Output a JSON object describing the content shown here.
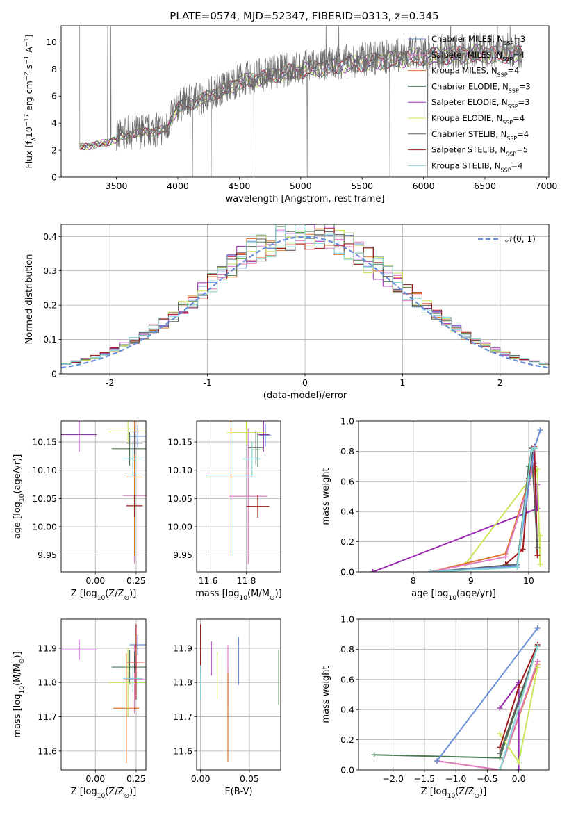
{
  "figure": {
    "title": "PLATE=0574, MJD=52347, FIBERID=0313, z=0.345"
  },
  "colors": {
    "Chabrier MILES": "#6a8ed8",
    "Salpeter MILES": "#e07fc6",
    "Kroupa MILES": "#e0762c",
    "Chabrier ELODIE": "#4b7a53",
    "Salpeter ELODIE": "#9a2ab0",
    "Kroupa ELODIE": "#c9e65a",
    "Chabrier STELIB": "#5e5e5e",
    "Salpeter STELIB": "#a01818",
    "Kroupa STELIB": "#86d7d7"
  },
  "chart_data": [
    {
      "id": "spectrum",
      "type": "line",
      "title": "PLATE=0574, MJD=52347, FIBERID=0313, z=0.345",
      "xlabel": "wavelength [Angstrom, rest frame]",
      "ylabel": "Flux [f",
      "ylabel_sub": "λ",
      "ylabel_rest": "10",
      "ylabel_sup1": "−17",
      "ylabel_rest2": " erg cm",
      "ylabel_sup2": "−2",
      "ylabel_rest3": " s",
      "ylabel_sup3": "−1",
      "ylabel_rest4": " A",
      "ylabel_sup4": "−1",
      "ylabel_end": "]",
      "xlim": [
        3050,
        7020
      ],
      "ylim": [
        0,
        11.2
      ],
      "xticks": [
        3500,
        4000,
        4500,
        5000,
        5500,
        6000,
        6500,
        7000
      ],
      "yticks": [
        0,
        2,
        4,
        6,
        8,
        10
      ],
      "grid": false,
      "legend_position": "top-right",
      "legend": [
        {
          "name": "Chabrier MILES",
          "nssp": "3"
        },
        {
          "name": "Salpeter MILES",
          "nssp": "4"
        },
        {
          "name": "Kroupa MILES",
          "nssp": "4"
        },
        {
          "name": "Chabrier ELODIE",
          "nssp": "3"
        },
        {
          "name": "Salpeter ELODIE",
          "nssp": "3"
        },
        {
          "name": "Kroupa ELODIE",
          "nssp": "4"
        },
        {
          "name": "Chabrier STELIB",
          "nssp": "4"
        },
        {
          "name": "Salpeter STELIB",
          "nssp": "5"
        },
        {
          "name": "Kroupa STELIB",
          "nssp": "4"
        }
      ],
      "continuum": {
        "x": [
          3200,
          3300,
          3400,
          3500,
          3600,
          3700,
          3800,
          3900,
          4000,
          4100,
          4200,
          4300,
          4400,
          4500,
          4600,
          4700,
          4800,
          4900,
          5000,
          5100,
          5200,
          5300,
          5400,
          5500,
          5600,
          5700,
          5800,
          5900,
          6000,
          6100,
          6200,
          6300,
          6400,
          6500,
          6600,
          6700,
          6800
        ],
        "y": [
          2.3,
          2.4,
          2.6,
          2.9,
          3.3,
          3.4,
          3.5,
          3.6,
          5.3,
          5.6,
          5.9,
          6.4,
          6.7,
          7.2,
          7.4,
          7.6,
          7.8,
          8.0,
          8.1,
          8.3,
          8.3,
          8.5,
          8.6,
          8.7,
          8.8,
          8.9,
          9.0,
          9.1,
          9.2,
          9.2,
          9.3,
          9.3,
          9.4,
          9.4,
          9.3,
          9.4,
          9.3
        ]
      },
      "data_range_angstrom": [
        3200,
        6800
      ],
      "noise_start_angstrom": 3500
    },
    {
      "id": "residuals",
      "type": "line",
      "xlabel": "(data-model)/error",
      "ylabel": "Normed distribution",
      "xlim": [
        -2.5,
        2.5
      ],
      "ylim": [
        0,
        0.435
      ],
      "xticks": [
        -2,
        -1,
        0,
        1,
        2
      ],
      "yticks": [
        0.0,
        0.1,
        0.2,
        0.3,
        0.4
      ],
      "grid": true,
      "legend_position": "top-right",
      "legend_label": "𝒩(0, 1)",
      "bin_width": 0.1,
      "reference_curve": {
        "type": "gaussian",
        "mean": 0,
        "sigma": 1
      },
      "series_order": [
        "Chabrier MILES",
        "Salpeter MILES",
        "Kroupa MILES",
        "Chabrier ELODIE",
        "Salpeter ELODIE",
        "Kroupa ELODIE",
        "Chabrier STELIB",
        "Salpeter STELIB",
        "Kroupa STELIB"
      ]
    },
    {
      "id": "z-age",
      "type": "scatter",
      "xlabel": "Z [log",
      "xlabel_sub": "10",
      "xlabel_rest": "(Z/Z",
      "xlabel_sub2": "⊙",
      "xlabel_end": ")]",
      "ylabel": "age  [log",
      "ylabel_sub": "10",
      "ylabel_rest": "(age/yr)]",
      "xlim": [
        -0.21,
        0.31
      ],
      "ylim": [
        9.92,
        10.187
      ],
      "xticks": [
        0.0,
        0.25
      ],
      "xtick_labels": [
        "0.00",
        "0.25"
      ],
      "yticks": [
        9.95,
        10.0,
        10.05,
        10.1,
        10.15
      ],
      "ytick_labels": [
        "9.95",
        "10.00",
        "10.05",
        "10.10",
        "10.15"
      ],
      "grid": true,
      "points": [
        {
          "series": "Chabrier MILES",
          "x": 0.26,
          "y": 10.16,
          "xerr": 0.05,
          "yerr": 0.02
        },
        {
          "series": "Salpeter MILES",
          "x": 0.24,
          "y": 10.055,
          "xerr": 0.07,
          "yerr": 0.12
        },
        {
          "series": "Kroupa MILES",
          "x": 0.24,
          "y": 10.088,
          "xerr": 0.05,
          "yerr": 0.14
        },
        {
          "series": "Chabrier ELODIE",
          "x": 0.21,
          "y": 10.138,
          "xerr": 0.11,
          "yerr": 0.03
        },
        {
          "series": "Salpeter ELODIE",
          "x": -0.1,
          "y": 10.163,
          "xerr": 0.11,
          "yerr": 0.03
        },
        {
          "series": "Kroupa ELODIE",
          "x": 0.2,
          "y": 10.168,
          "xerr": 0.12,
          "yerr": 0.02
        },
        {
          "series": "Chabrier STELIB",
          "x": 0.24,
          "y": 10.148,
          "xerr": 0.05,
          "yerr": 0.02
        },
        {
          "series": "Salpeter STELIB",
          "x": 0.24,
          "y": 10.037,
          "xerr": 0.05,
          "yerr": 0.02
        },
        {
          "series": "Kroupa STELIB",
          "x": 0.23,
          "y": 10.12,
          "xerr": 0.06,
          "yerr": 0.03
        }
      ]
    },
    {
      "id": "mass-age",
      "type": "scatter",
      "xlabel": "mass [log",
      "xlabel_sub": "10",
      "xlabel_rest": "(M/M",
      "xlabel_sub2": "⊙",
      "xlabel_end": ")]",
      "xlim": [
        11.54,
        11.98
      ],
      "ylim": [
        9.92,
        10.187
      ],
      "xticks": [
        11.6,
        11.8
      ],
      "xtick_labels": [
        "11.6",
        "11.8"
      ],
      "yticks": [
        9.95,
        10.0,
        10.05,
        10.1,
        10.15
      ],
      "ytick_labels": [
        "9.95",
        "10.00",
        "10.05",
        "10.10",
        "10.15"
      ],
      "grid": true,
      "points": [
        {
          "series": "Chabrier MILES",
          "x": 11.9,
          "y": 10.162,
          "xerr": 0.03,
          "yerr": 0.02
        },
        {
          "series": "Salpeter MILES",
          "x": 11.81,
          "y": 10.054,
          "xerr": 0.1,
          "yerr": 0.12
        },
        {
          "series": "Kroupa MILES",
          "x": 11.72,
          "y": 10.088,
          "xerr": 0.13,
          "yerr": 0.14
        },
        {
          "series": "Chabrier ELODIE",
          "x": 11.86,
          "y": 10.136,
          "xerr": 0.03,
          "yerr": 0.03
        },
        {
          "series": "Salpeter ELODIE",
          "x": 11.89,
          "y": 10.163,
          "xerr": 0.03,
          "yerr": 0.03
        },
        {
          "series": "Kroupa ELODIE",
          "x": 11.8,
          "y": 10.167,
          "xerr": 0.1,
          "yerr": 0.02
        },
        {
          "series": "Chabrier STELIB",
          "x": 11.85,
          "y": 10.14,
          "xerr": 0.04,
          "yerr": 0.03
        },
        {
          "series": "Salpeter STELIB",
          "x": 11.86,
          "y": 10.036,
          "xerr": 0.06,
          "yerr": 0.02
        },
        {
          "series": "Kroupa STELIB",
          "x": 11.83,
          "y": 10.12,
          "xerr": 0.05,
          "yerr": 0.03
        }
      ]
    },
    {
      "id": "age-weight",
      "type": "line",
      "xlabel": "age  [log",
      "xlabel_sub": "10",
      "xlabel_rest": "(age/yr)]",
      "ylabel": "mass weight",
      "xlim": [
        7.05,
        10.35
      ],
      "ylim": [
        0,
        1.0
      ],
      "xticks": [
        8,
        9,
        10
      ],
      "yticks": [
        0.0,
        0.2,
        0.4,
        0.6,
        0.8,
        1.0
      ],
      "ytick_labels": [
        "0.0",
        "0.2",
        "0.4",
        "0.6",
        "0.8",
        "1.0"
      ],
      "grid": true,
      "series": [
        {
          "name": "Salpeter ELODIE",
          "x": [
            7.3,
            10.15,
            10.15
          ],
          "y": [
            0.0,
            0.42,
            0.58
          ]
        },
        {
          "name": "Kroupa ELODIE",
          "x": [
            8.9,
            10.15,
            10.2,
            10.2
          ],
          "y": [
            0.05,
            0.68,
            0.05,
            0.24
          ]
        },
        {
          "name": "Chabrier ELODIE",
          "x": [
            8.3,
            9.8,
            10.0,
            10.1
          ],
          "y": [
            0.0,
            0.03,
            0.7,
            0.82
          ]
        },
        {
          "name": "Kroupa MILES",
          "x": [
            8.3,
            9.6,
            10.0,
            10.1
          ],
          "y": [
            0.0,
            0.12,
            0.6,
            0.7
          ]
        },
        {
          "name": "Salpeter MILES",
          "x": [
            8.3,
            9.6,
            10.0,
            10.1
          ],
          "y": [
            0.0,
            0.1,
            0.58,
            0.72
          ]
        },
        {
          "name": "Salpeter STELIB",
          "x": [
            9.6,
            9.9,
            10.0,
            10.1,
            10.15
          ],
          "y": [
            0.05,
            0.15,
            0.62,
            0.83,
            0.11
          ]
        },
        {
          "name": "Chabrier STELIB",
          "x": [
            8.3,
            9.8,
            10.05,
            10.15
          ],
          "y": [
            0.0,
            0.05,
            0.82,
            0.16
          ]
        },
        {
          "name": "Chabrier MILES",
          "x": [
            8.3,
            9.8,
            10.1,
            10.2
          ],
          "y": [
            0.0,
            0.04,
            0.82,
            0.94
          ]
        },
        {
          "name": "Kroupa STELIB",
          "x": [
            8.3,
            9.8,
            10.05,
            10.1
          ],
          "y": [
            0.0,
            0.03,
            0.8,
            0.82
          ]
        }
      ]
    },
    {
      "id": "z-mass",
      "type": "scatter",
      "xlabel": "Z [log",
      "xlabel_sub": "10",
      "xlabel_rest": "(Z/Z",
      "xlabel_sub2": "⊙",
      "xlabel_end": ")]",
      "ylabel": "mass [log",
      "ylabel_sub": "10",
      "ylabel_rest": "(M/M",
      "ylabel_sub2": "⊙",
      "ylabel_end": ")]",
      "xlim": [
        -0.21,
        0.31
      ],
      "ylim": [
        11.545,
        11.985
      ],
      "xticks": [
        0.0,
        0.25
      ],
      "xtick_labels": [
        "0.00",
        "0.25"
      ],
      "yticks": [
        11.6,
        11.7,
        11.8,
        11.9
      ],
      "ytick_labels": [
        "11.6",
        "11.7",
        "11.8",
        "11.9"
      ],
      "grid": true,
      "points": [
        {
          "series": "Chabrier MILES",
          "x": 0.26,
          "y": 11.91,
          "xerr": 0.05,
          "yerr": 0.03
        },
        {
          "series": "Salpeter MILES",
          "x": 0.24,
          "y": 11.81,
          "xerr": 0.06,
          "yerr": 0.1
        },
        {
          "series": "Kroupa MILES",
          "x": 0.19,
          "y": 11.725,
          "xerr": 0.08,
          "yerr": 0.16
        },
        {
          "series": "Chabrier ELODIE",
          "x": 0.21,
          "y": 11.845,
          "xerr": 0.11,
          "yerr": 0.05
        },
        {
          "series": "Salpeter ELODIE",
          "x": -0.1,
          "y": 11.895,
          "xerr": 0.11,
          "yerr": 0.03
        },
        {
          "series": "Kroupa ELODIE",
          "x": 0.2,
          "y": 11.8,
          "xerr": 0.12,
          "yerr": 0.1
        },
        {
          "series": "Chabrier STELIB",
          "x": 0.24,
          "y": 11.86,
          "xerr": 0.05,
          "yerr": 0.03
        },
        {
          "series": "Salpeter STELIB",
          "x": 0.25,
          "y": 11.86,
          "xerr": 0.05,
          "yerr": 0.11
        },
        {
          "series": "Kroupa STELIB",
          "x": 0.23,
          "y": 11.812,
          "xerr": 0.06,
          "yerr": 0.04
        }
      ]
    },
    {
      "id": "ebv-mass",
      "type": "scatter",
      "xlabel": "E(B-V)",
      "xlim": [
        -0.004,
        0.082
      ],
      "ylim": [
        11.545,
        11.985
      ],
      "xticks": [
        0.0,
        0.05
      ],
      "xtick_labels": [
        "0.00",
        "0.05"
      ],
      "yticks": [
        11.6,
        11.7,
        11.8,
        11.9
      ],
      "ytick_labels": [
        "11.6",
        "11.7",
        "11.8",
        "11.9"
      ],
      "grid": true,
      "points": [
        {
          "series": "Chabrier MILES",
          "x": 0.039,
          "y": 11.863,
          "xerr": 0,
          "yerr": 0.07
        },
        {
          "series": "Salpeter MILES",
          "x": 0.028,
          "y": 11.82,
          "xerr": 0,
          "yerr": 0.09
        },
        {
          "series": "Kroupa MILES",
          "x": 0.028,
          "y": 11.7,
          "xerr": 0,
          "yerr": 0.13
        },
        {
          "series": "Chabrier ELODIE",
          "x": 0.08,
          "y": 11.815,
          "xerr": 0,
          "yerr": 0.08
        },
        {
          "series": "Salpeter ELODIE",
          "x": 0.011,
          "y": 11.87,
          "xerr": 0,
          "yerr": 0.05
        },
        {
          "series": "Kroupa ELODIE",
          "x": 0.017,
          "y": 11.82,
          "xerr": 0,
          "yerr": 0.07
        },
        {
          "series": "Chabrier STELIB",
          "x": 0.0,
          "y": 11.85,
          "xerr": 0,
          "yerr": 0.04
        },
        {
          "series": "Salpeter STELIB",
          "x": 0.0,
          "y": 11.9,
          "xerr": 0,
          "yerr": 0.07
        },
        {
          "series": "Kroupa STELIB",
          "x": 0.0,
          "y": 11.8,
          "xerr": 0,
          "yerr": 0.05
        }
      ]
    },
    {
      "id": "z-weight",
      "type": "line",
      "xlabel": "Z [log",
      "xlabel_sub": "10",
      "xlabel_rest": "(Z/Z",
      "xlabel_sub2": "⊙",
      "xlabel_end": ")]",
      "ylabel": "mass weight",
      "xlim": [
        -2.55,
        0.48
      ],
      "ylim": [
        0,
        1.0
      ],
      "xticks": [
        -2.0,
        -1.5,
        -1.0,
        -0.5,
        0.0
      ],
      "xtick_labels": [
        "−2.0",
        "−1.5",
        "−1.0",
        "−0.5",
        "0.0"
      ],
      "yticks": [
        0.0,
        0.2,
        0.4,
        0.6,
        0.8,
        1.0
      ],
      "ytick_labels": [
        "0.0",
        "0.2",
        "0.4",
        "0.6",
        "0.8",
        "1.0"
      ],
      "grid": true,
      "series": [
        {
          "name": "Chabrier ELODIE",
          "x": [
            -2.3,
            -0.3,
            0.3
          ],
          "y": [
            0.1,
            0.08,
            0.82
          ]
        },
        {
          "name": "Kroupa MILES",
          "x": [
            -1.3,
            -0.3,
            0.3
          ],
          "y": [
            0.06,
            0.0,
            0.7
          ]
        },
        {
          "name": "Salpeter MILES",
          "x": [
            -1.3,
            -0.3,
            0.3
          ],
          "y": [
            0.06,
            0.0,
            0.72
          ]
        },
        {
          "name": "Chabrier MILES",
          "x": [
            -1.3,
            0.3
          ],
          "y": [
            0.06,
            0.94
          ]
        },
        {
          "name": "Salpeter ELODIE",
          "x": [
            -0.3,
            0.0,
            0.0
          ],
          "y": [
            0.41,
            0.58,
            0.0
          ]
        },
        {
          "name": "Kroupa ELODIE",
          "x": [
            -0.3,
            0.0,
            0.3
          ],
          "y": [
            0.24,
            0.05,
            0.68
          ]
        },
        {
          "name": "Salpeter STELIB",
          "x": [
            -0.3,
            0.0,
            0.3
          ],
          "y": [
            0.15,
            0.55,
            0.83
          ]
        },
        {
          "name": "Chabrier STELIB",
          "x": [
            -0.3,
            0.3
          ],
          "y": [
            0.11,
            0.82
          ]
        },
        {
          "name": "Kroupa STELIB",
          "x": [
            -0.3,
            0.3
          ],
          "y": [
            0.0,
            0.82
          ]
        }
      ]
    }
  ]
}
